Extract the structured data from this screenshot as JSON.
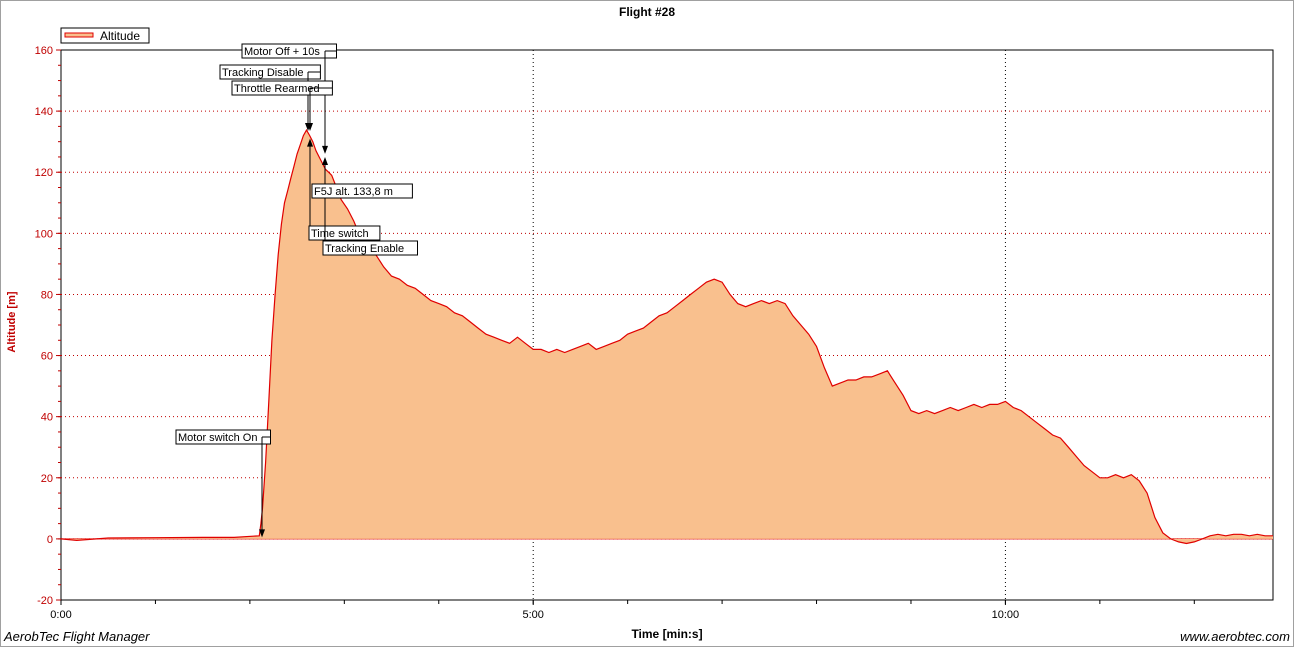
{
  "app": {
    "name": "AerobTec Flight Manager",
    "website": "www.aerobtec.com"
  },
  "colors": {
    "line": "#e00000",
    "fill": "#f9c08e",
    "axis_text": "#c00000",
    "grid": "#000000"
  },
  "chart_data": {
    "type": "area",
    "title": "Flight #28",
    "xlabel": "Time [min:s]",
    "ylabel": "Altitude [m]",
    "xlim": [
      0,
      770
    ],
    "ylim": [
      -20,
      160
    ],
    "x_ticks": [
      {
        "value": 0,
        "label": "0:00"
      },
      {
        "value": 300,
        "label": "5:00"
      },
      {
        "value": 600,
        "label": "10:00"
      }
    ],
    "y_ticks": [
      -20,
      0,
      20,
      40,
      60,
      80,
      100,
      120,
      140,
      160
    ],
    "grid": true,
    "legend": {
      "position": "top-left",
      "entries": [
        "Altitude"
      ]
    },
    "series": [
      {
        "name": "Altitude",
        "x": [
          0,
          10,
          30,
          60,
          90,
          110,
          126,
          127,
          128,
          130,
          132,
          134,
          136,
          138,
          140,
          142,
          144,
          146,
          148,
          150,
          152,
          154,
          156,
          158,
          160,
          162,
          164,
          166,
          168,
          170,
          172,
          175,
          178,
          182,
          186,
          190,
          195,
          200,
          205,
          210,
          215,
          220,
          225,
          230,
          235,
          240,
          245,
          250,
          255,
          260,
          265,
          270,
          275,
          280,
          285,
          290,
          295,
          300,
          305,
          310,
          315,
          320,
          325,
          330,
          335,
          340,
          345,
          350,
          355,
          360,
          365,
          370,
          375,
          380,
          385,
          390,
          395,
          400,
          405,
          410,
          415,
          420,
          425,
          430,
          435,
          440,
          445,
          450,
          455,
          460,
          465,
          470,
          475,
          480,
          485,
          490,
          495,
          500,
          505,
          510,
          515,
          520,
          525,
          530,
          535,
          540,
          545,
          550,
          555,
          560,
          565,
          570,
          575,
          580,
          585,
          590,
          595,
          600,
          605,
          610,
          615,
          620,
          625,
          630,
          635,
          640,
          645,
          650,
          655,
          660,
          665,
          670,
          675,
          680,
          685,
          690,
          695,
          700,
          705,
          710,
          715,
          720,
          725,
          730,
          735,
          740,
          745,
          750,
          755,
          760,
          765,
          770
        ],
        "y": [
          0,
          -0.5,
          0.3,
          0.4,
          0.5,
          0.5,
          1,
          5,
          10,
          25,
          45,
          65,
          80,
          93,
          103,
          110,
          114,
          118,
          122,
          126,
          129,
          132,
          133.8,
          132,
          130,
          127,
          125,
          123,
          121,
          120,
          119,
          115,
          111,
          108,
          104,
          99,
          96,
          93,
          89,
          86,
          85,
          83,
          82,
          80,
          78,
          77,
          76,
          74,
          73,
          71,
          69,
          67,
          66,
          65,
          64,
          66,
          64,
          62,
          62,
          61,
          62,
          61,
          62,
          63,
          64,
          62,
          63,
          64,
          65,
          67,
          68,
          69,
          71,
          73,
          74,
          76,
          78,
          80,
          82,
          84,
          85,
          84,
          80,
          77,
          76,
          77,
          78,
          77,
          78,
          77,
          73,
          70,
          67,
          63,
          56,
          50,
          51,
          52,
          52,
          53,
          53,
          54,
          55,
          51,
          47,
          42,
          41,
          42,
          41,
          42,
          43,
          42,
          43,
          44,
          43,
          44,
          44,
          45,
          43,
          42,
          40,
          38,
          36,
          34,
          33,
          30,
          27,
          24,
          22,
          20,
          20,
          21,
          20,
          21,
          19,
          15,
          7,
          2,
          0,
          -1,
          -1.5,
          -1,
          0,
          1,
          1.5,
          1,
          1.5,
          1.5,
          1,
          1.5,
          1,
          1
        ]
      }
    ],
    "annotations": [
      {
        "label": "Motor switch On",
        "x": 128,
        "y": 0.5,
        "direction": "down"
      },
      {
        "label": "Motor Off + 10s",
        "x": 168,
        "y": 126,
        "direction": "down"
      },
      {
        "label": "Tracking Disable",
        "x": 157,
        "y": 133.5,
        "direction": "down"
      },
      {
        "label": "Throttle Rearmed",
        "x": 158,
        "y": 133.5,
        "direction": "down"
      },
      {
        "label": "Time switch",
        "x": 158,
        "y": 131,
        "direction": "up"
      },
      {
        "label": "Tracking Enable",
        "x": 168,
        "y": 125,
        "direction": "up"
      },
      {
        "label": "F5J alt. 133,8 m",
        "x": 160,
        "y": 133.8,
        "direction": "none"
      }
    ]
  }
}
